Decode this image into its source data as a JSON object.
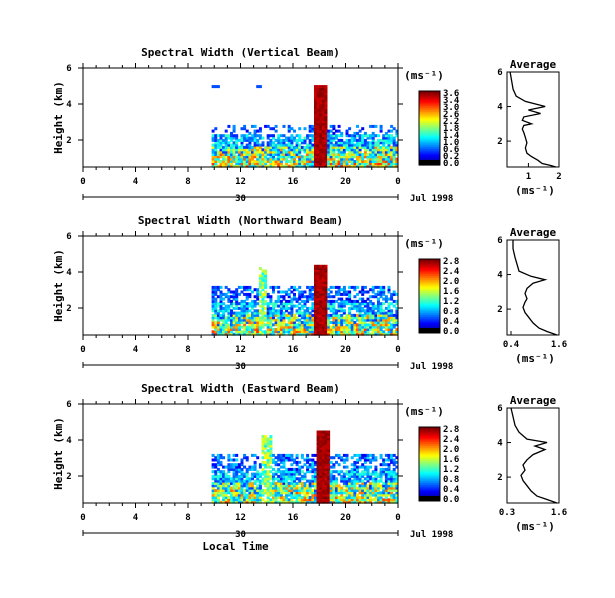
{
  "chart_data": [
    {
      "type": "heatmap",
      "title": "Spectral Width (Vertical Beam)",
      "ylabel": "Height (km)",
      "y_ticks": [
        "6",
        "4",
        "2"
      ],
      "x_ticks": [
        "0",
        "4",
        "8",
        "12",
        "16",
        "20",
        "0"
      ],
      "date_tick": "30",
      "date_label": "Jul 1998",
      "xlim": [
        0,
        24
      ],
      "colorbar": {
        "unit": "(ms⁻¹)",
        "ticks": [
          "3.6",
          "3.4",
          "3.0",
          "2.6",
          "2.2",
          "1.8",
          "1.4",
          "1.0",
          "0.6",
          "0.2",
          "0.0"
        ]
      },
      "average": {
        "title": "Average",
        "xlabel": "(ms⁻¹)",
        "x_ticks": [
          "1",
          "2"
        ],
        "y_ticks": [
          "6",
          "4",
          "2"
        ],
        "xlim": [
          0.3,
          2.0
        ],
        "profile": [
          [
            1.9,
            0.5
          ],
          [
            1.7,
            0.6
          ],
          [
            1.45,
            0.7
          ],
          [
            1.3,
            0.9
          ],
          [
            1.1,
            1.1
          ],
          [
            0.95,
            1.3
          ],
          [
            0.9,
            1.6
          ],
          [
            0.95,
            1.9
          ],
          [
            0.9,
            2.2
          ],
          [
            0.85,
            2.5
          ],
          [
            0.8,
            2.7
          ],
          [
            0.85,
            2.9
          ],
          [
            1.1,
            3.0
          ],
          [
            0.8,
            3.2
          ],
          [
            0.85,
            3.4
          ],
          [
            1.4,
            3.6
          ],
          [
            1.0,
            3.8
          ],
          [
            1.55,
            4.0
          ],
          [
            0.9,
            4.3
          ],
          [
            0.6,
            4.6
          ],
          [
            0.5,
            5.0
          ],
          [
            0.45,
            5.5
          ],
          [
            0.4,
            6.0
          ]
        ]
      }
    },
    {
      "type": "heatmap",
      "title": "Spectral Width (Northward Beam)",
      "ylabel": "Height (km)",
      "y_ticks": [
        "6",
        "4",
        "2"
      ],
      "x_ticks": [
        "0",
        "4",
        "8",
        "12",
        "16",
        "20",
        "0"
      ],
      "date_tick": "30",
      "date_label": "Jul 1998",
      "xlim": [
        0,
        24
      ],
      "colorbar": {
        "unit": "(ms⁻¹)",
        "ticks": [
          "2.8",
          "2.4",
          "2.0",
          "1.6",
          "1.2",
          "0.8",
          "0.4",
          "0.0"
        ]
      },
      "average": {
        "title": "Average",
        "xlabel": "(ms⁻¹)",
        "x_ticks": [
          "0.4",
          "1.6"
        ],
        "y_ticks": [
          "6",
          "4",
          "2"
        ],
        "xlim": [
          0.3,
          1.6
        ],
        "profile": [
          [
            1.55,
            0.5
          ],
          [
            1.3,
            0.7
          ],
          [
            1.1,
            0.9
          ],
          [
            0.95,
            1.2
          ],
          [
            0.85,
            1.5
          ],
          [
            0.75,
            1.8
          ],
          [
            0.7,
            2.1
          ],
          [
            0.75,
            2.4
          ],
          [
            0.8,
            2.6
          ],
          [
            0.75,
            2.9
          ],
          [
            0.8,
            3.2
          ],
          [
            0.95,
            3.5
          ],
          [
            1.25,
            3.7
          ],
          [
            0.9,
            3.9
          ],
          [
            0.6,
            4.2
          ],
          [
            0.55,
            4.6
          ],
          [
            0.5,
            5.0
          ],
          [
            0.45,
            5.5
          ],
          [
            0.45,
            6.0
          ]
        ]
      }
    },
    {
      "type": "heatmap",
      "title": "Spectral Width (Eastward Beam)",
      "ylabel": "Height (km)",
      "y_ticks": [
        "6",
        "4",
        "2"
      ],
      "x_ticks": [
        "0",
        "4",
        "8",
        "12",
        "16",
        "20",
        "0"
      ],
      "date_tick": "30",
      "date_label": "Jul 1998",
      "xlabel": "Local Time",
      "xlim": [
        0,
        24
      ],
      "colorbar": {
        "unit": "(ms⁻¹)",
        "ticks": [
          "2.8",
          "2.4",
          "2.0",
          "1.6",
          "1.2",
          "0.8",
          "0.4",
          "0.0"
        ]
      },
      "average": {
        "title": "Average",
        "xlabel": "(ms⁻¹)",
        "x_ticks": [
          "0.3",
          "1.6"
        ],
        "y_ticks": [
          "6",
          "4",
          "2"
        ],
        "xlim": [
          0.3,
          1.6
        ],
        "profile": [
          [
            1.55,
            0.5
          ],
          [
            1.3,
            0.7
          ],
          [
            1.05,
            0.9
          ],
          [
            0.9,
            1.2
          ],
          [
            0.8,
            1.5
          ],
          [
            0.7,
            1.8
          ],
          [
            0.65,
            2.1
          ],
          [
            0.75,
            2.4
          ],
          [
            0.7,
            2.7
          ],
          [
            0.8,
            3.0
          ],
          [
            0.95,
            3.3
          ],
          [
            1.25,
            3.6
          ],
          [
            1.0,
            3.8
          ],
          [
            1.3,
            4.0
          ],
          [
            0.8,
            4.2
          ],
          [
            0.6,
            4.6
          ],
          [
            0.5,
            5.0
          ],
          [
            0.45,
            5.5
          ],
          [
            0.4,
            6.0
          ]
        ]
      }
    }
  ]
}
